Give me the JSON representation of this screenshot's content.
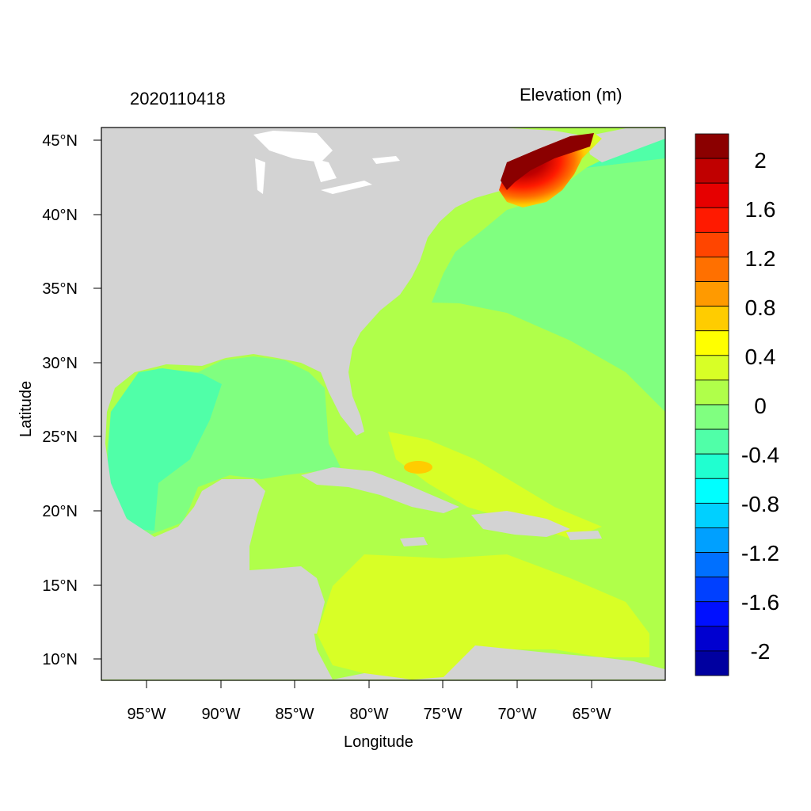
{
  "header": {
    "date_label": "2020110418",
    "variable_label": "Elevation (m)"
  },
  "axes": {
    "x_title": "Longitude",
    "y_title": "Latitude",
    "x_ticks": [
      "95°W",
      "90°W",
      "85°W",
      "80°W",
      "75°W",
      "70°W",
      "65°W"
    ],
    "y_ticks": [
      "45°N",
      "40°N",
      "35°N",
      "30°N",
      "25°N",
      "20°N",
      "15°N",
      "10°N"
    ]
  },
  "colorbar": {
    "labels": [
      "2",
      "1.6",
      "1.2",
      "0.8",
      "0.4",
      "0",
      "-0.4",
      "-0.8",
      "-1.2",
      "-1.6",
      "-2"
    ],
    "colors": [
      "#8b0000",
      "#c00000",
      "#e60000",
      "#ff1a00",
      "#ff4500",
      "#ff7000",
      "#ff9a00",
      "#ffcc00",
      "#ffff00",
      "#d8ff26",
      "#b0ff4a",
      "#80ff80",
      "#50ffa8",
      "#20ffd0",
      "#00ffff",
      "#00d0ff",
      "#00a0ff",
      "#0070ff",
      "#0040ff",
      "#0010ff",
      "#0000d0",
      "#0000a0"
    ]
  },
  "colors": {
    "land": "#d3d3d3",
    "lakes": "#ffffff"
  }
}
